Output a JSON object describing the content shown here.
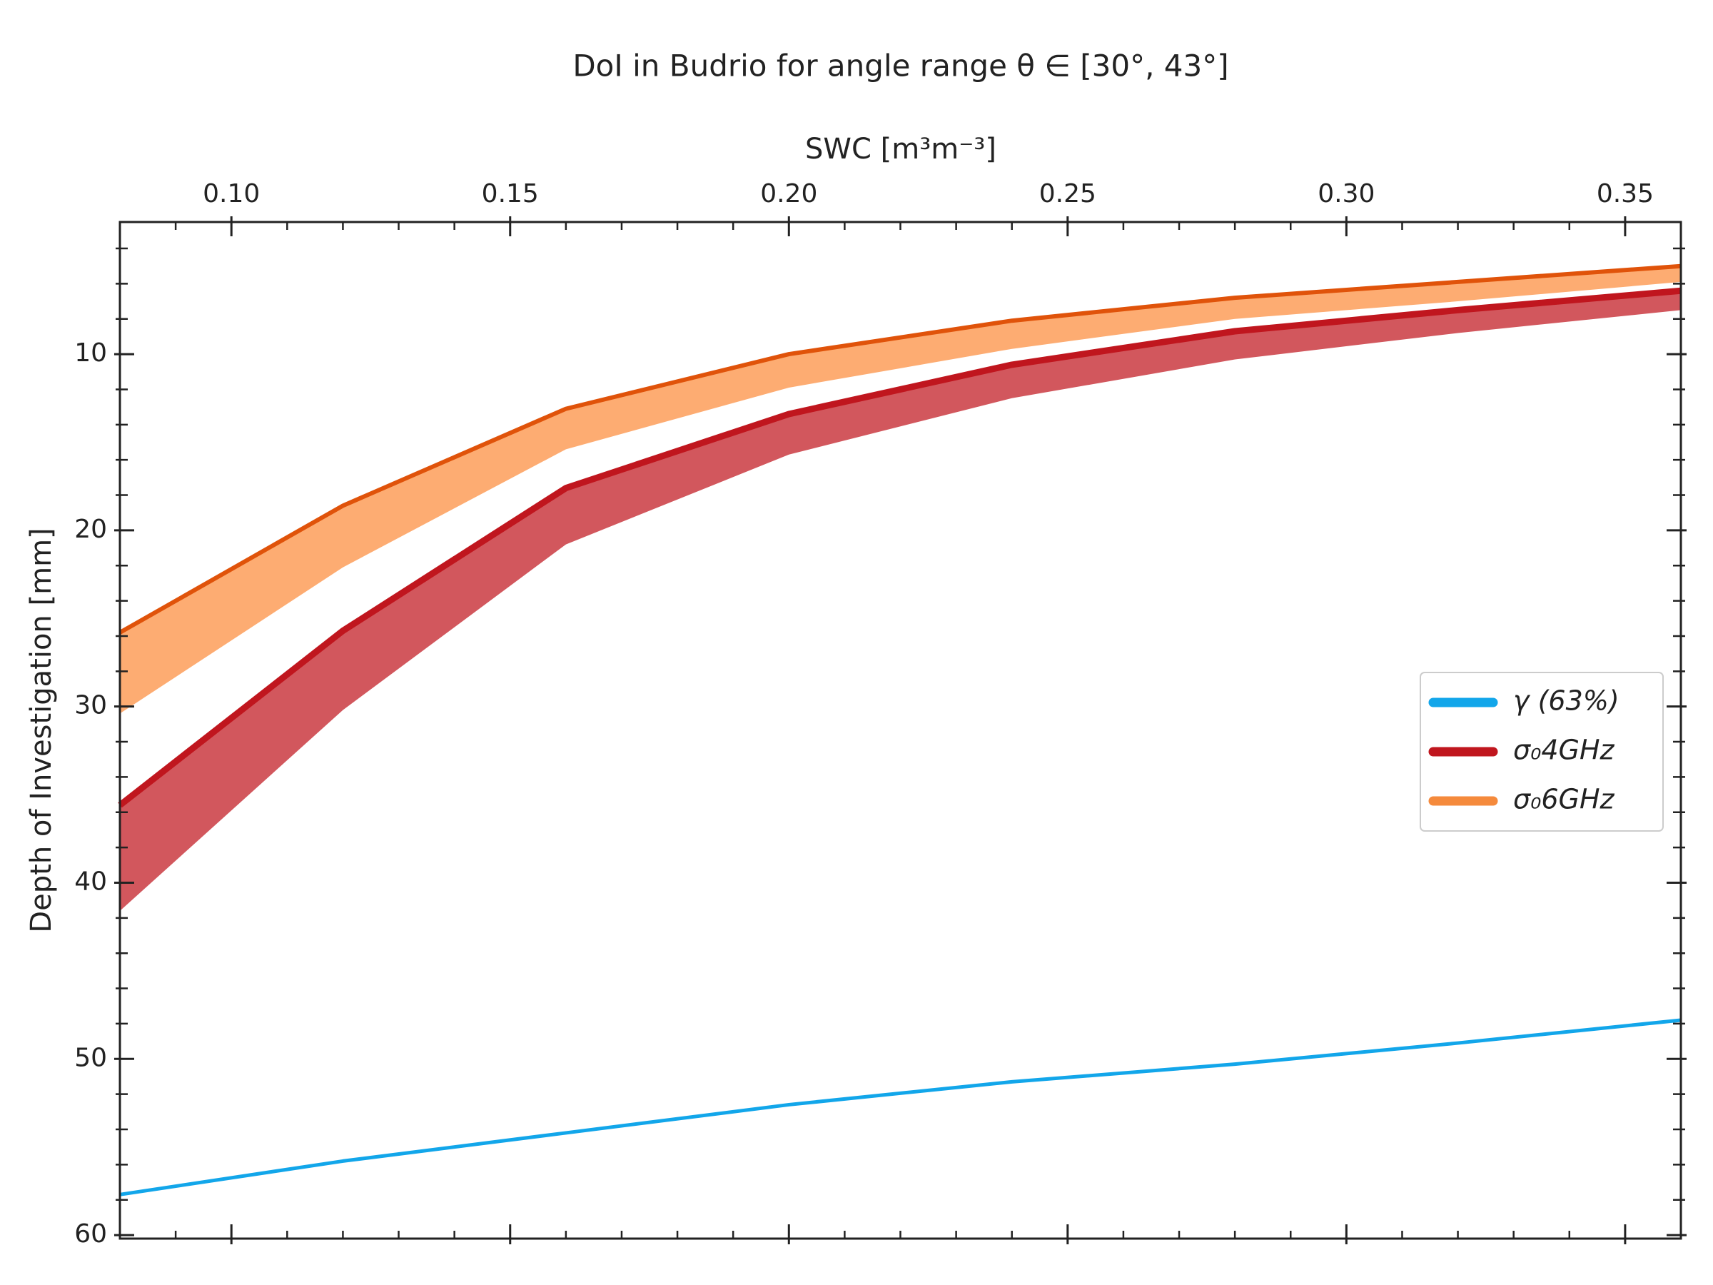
{
  "chart_data": {
    "type": "line",
    "title": "DoI in Budrio for angle range θ ∈ [30°, 43°]",
    "x_label": "SWC [m³m⁻³]",
    "y_label": "Depth of Investigation [mm]",
    "x": [
      0.08,
      0.12,
      0.16,
      0.2,
      0.24,
      0.28,
      0.32,
      0.36
    ],
    "series": [
      {
        "name": "γ (63%)",
        "color": "#12a6ea",
        "values": [
          57.7,
          55.8,
          54.2,
          52.6,
          51.3,
          50.3,
          49.1,
          47.8
        ]
      },
      {
        "name": "σ₀4GHz",
        "color": "#c0161e",
        "fill": "#d2575d",
        "values": [
          35.6,
          25.7,
          17.6,
          13.4,
          10.6,
          8.7,
          7.5,
          6.4
        ],
        "lower": [
          41.6,
          30.2,
          20.8,
          15.7,
          12.5,
          10.3,
          8.8,
          7.5
        ]
      },
      {
        "name": "σ₀6GHz",
        "color": "#e0530a",
        "fill": "#fdac72",
        "legend_color": "#f58a3c",
        "values": [
          25.8,
          18.6,
          13.1,
          10.0,
          8.1,
          6.8,
          5.9,
          5.0
        ],
        "lower": [
          30.4,
          22.1,
          15.4,
          11.9,
          9.7,
          8.0,
          7.0,
          5.9
        ]
      }
    ],
    "xlim": [
      0.08,
      0.36
    ],
    "xticks": [
      {
        "value": 0.1,
        "label": "0.10"
      },
      0.15,
      {
        "value": 0.2,
        "label": "0.20"
      },
      0.25,
      {
        "value": 0.3,
        "label": "0.30"
      },
      0.35
    ],
    "x_axis_position": "top",
    "ylim": [
      2.5,
      60.2
    ],
    "yticks": [
      10,
      20,
      30,
      40,
      50,
      60
    ],
    "y_inverted": true,
    "grid": false,
    "legend": "center right"
  }
}
